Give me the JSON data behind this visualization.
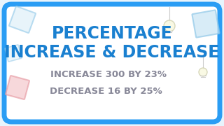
{
  "bg_color": "#ffffff",
  "outer_bg": "#e8f4fc",
  "border_color": "#2a9df4",
  "title_line1": "PERCENTAGE",
  "title_line2": "INCREASE & DECREASE",
  "subtitle1": "INCREASE 300 BY 23%",
  "subtitle2": "DECREASE 16 BY 25%",
  "title_color": "#1a80d0",
  "subtitle_color": "#888898",
  "title_fontsize": 17,
  "subtitle_fontsize": 9.5,
  "border_lw": 5
}
